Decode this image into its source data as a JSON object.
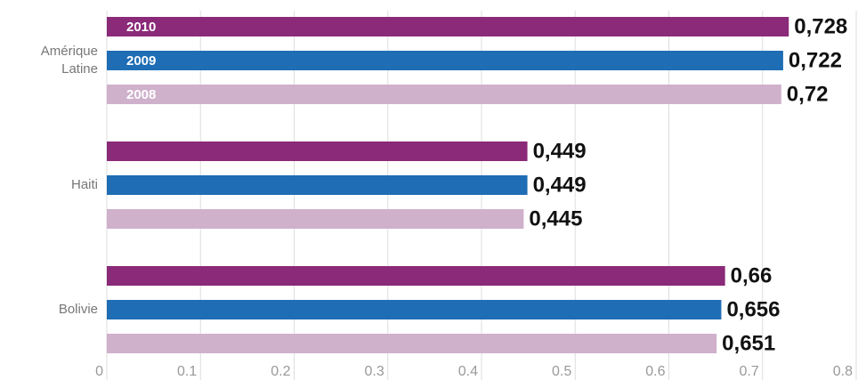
{
  "chart_data": {
    "type": "hbar",
    "categories": [
      "Amérique Latine",
      "Haiti",
      "Bolivie"
    ],
    "series": [
      {
        "name": "2010",
        "color": "#8a2a78",
        "values": [
          0.728,
          0.449,
          0.66
        ],
        "value_labels": [
          "0,728",
          "0,449",
          "0,66"
        ]
      },
      {
        "name": "2009",
        "color": "#1f6db5",
        "values": [
          0.722,
          0.449,
          0.656
        ],
        "value_labels": [
          "0,722",
          "0,449",
          "0,656"
        ]
      },
      {
        "name": "2008",
        "color": "#cfb1cc",
        "values": [
          0.72,
          0.445,
          0.651
        ],
        "value_labels": [
          "0,72",
          "0,445",
          "0,651"
        ]
      }
    ],
    "xlim": [
      0,
      0.8
    ],
    "xticks": [
      0,
      0.1,
      0.2,
      0.3,
      0.4,
      0.5,
      0.6,
      0.7,
      0.8
    ],
    "grid": true
  }
}
